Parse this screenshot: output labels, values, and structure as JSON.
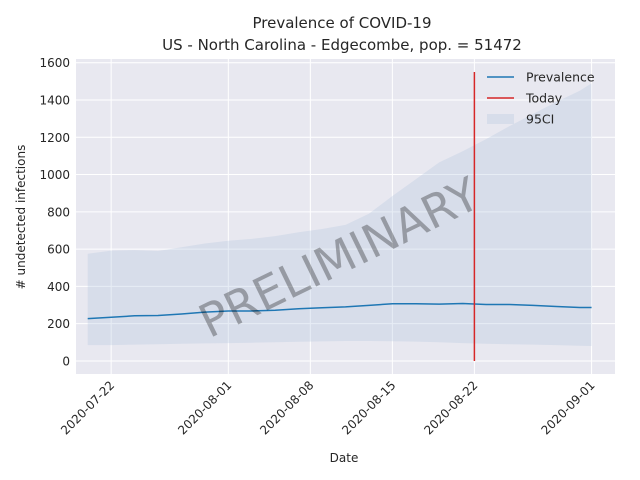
{
  "chart_data": {
    "type": "line",
    "title": "Prevalence of COVID-19",
    "subtitle": "US - North Carolina - Edgecombe, pop. = 51472",
    "xlabel": "Date",
    "ylabel": "# undetected infections",
    "xlim": [
      "2020-07-19",
      "2020-09-03"
    ],
    "ylim": [
      -70,
      1620
    ],
    "yticks": [
      0,
      200,
      400,
      600,
      800,
      1000,
      1200,
      1400,
      1600
    ],
    "xticks": [
      "2020-07-22",
      "2020-08-01",
      "2020-08-08",
      "2020-08-15",
      "2020-08-22",
      "2020-09-01"
    ],
    "grid": true,
    "legend_position": "top-right",
    "watermark": "PRELIMINARY",
    "colors": {
      "prevalence": "#1f77b4",
      "today": "#d62728",
      "ci": "#b0c4de",
      "background": "#e8e8f0",
      "grid": "#ffffff"
    },
    "series": [
      {
        "name": "Prevalence",
        "x": [
          "2020-07-20",
          "2020-07-22",
          "2020-07-24",
          "2020-07-26",
          "2020-07-28",
          "2020-07-30",
          "2020-08-01",
          "2020-08-03",
          "2020-08-05",
          "2020-08-07",
          "2020-08-09",
          "2020-08-11",
          "2020-08-13",
          "2020-08-15",
          "2020-08-17",
          "2020-08-19",
          "2020-08-21",
          "2020-08-23",
          "2020-08-25",
          "2020-08-27",
          "2020-08-29",
          "2020-08-31",
          "2020-09-01"
        ],
        "values": [
          227,
          235,
          242,
          244,
          252,
          262,
          268,
          268,
          272,
          280,
          285,
          290,
          298,
          307,
          307,
          305,
          308,
          303,
          303,
          298,
          292,
          287,
          287
        ]
      },
      {
        "name": "95CI",
        "x": [
          "2020-07-20",
          "2020-07-22",
          "2020-07-24",
          "2020-07-26",
          "2020-07-28",
          "2020-07-30",
          "2020-08-01",
          "2020-08-03",
          "2020-08-05",
          "2020-08-07",
          "2020-08-09",
          "2020-08-11",
          "2020-08-13",
          "2020-08-15",
          "2020-08-17",
          "2020-08-19",
          "2020-08-21",
          "2020-08-23",
          "2020-08-25",
          "2020-08-27",
          "2020-08-29",
          "2020-08-31",
          "2020-09-01"
        ],
        "lower": [
          85,
          85,
          88,
          90,
          92,
          94,
          96,
          98,
          100,
          103,
          105,
          107,
          107,
          106,
          104,
          100,
          96,
          92,
          90,
          88,
          85,
          82,
          80
        ],
        "upper": [
          575,
          592,
          595,
          590,
          610,
          630,
          645,
          655,
          670,
          690,
          708,
          730,
          790,
          885,
          975,
          1065,
          1125,
          1190,
          1260,
          1325,
          1390,
          1450,
          1490
        ]
      }
    ],
    "today": {
      "name": "Today",
      "x": "2020-08-22",
      "y_range": [
        0,
        1550
      ]
    }
  }
}
